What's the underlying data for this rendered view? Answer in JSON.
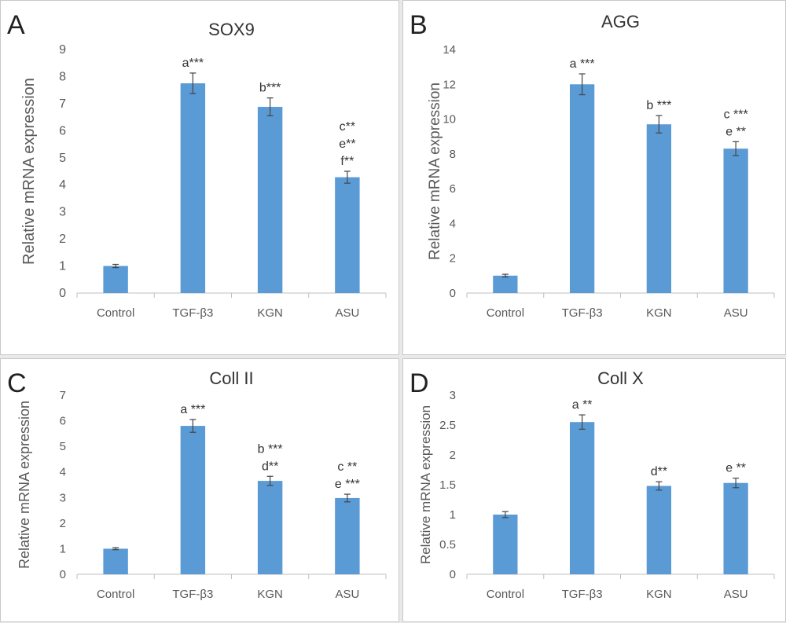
{
  "figure": {
    "bar_color": "#5b9bd5",
    "axis_color": "#bfbfbf",
    "text_color": "#595959",
    "error_color": "#444444"
  },
  "chart_data": [
    {
      "panel": "A",
      "type": "bar",
      "title": "SOX9",
      "ylabel": "Relative mRNA expression",
      "xlabel": "",
      "categories": [
        "Control",
        "TGF-β3",
        "KGN",
        "ASU"
      ],
      "values": [
        1.0,
        7.75,
        6.88,
        4.28
      ],
      "errors": [
        0.06,
        0.38,
        0.33,
        0.22
      ],
      "annotations": [
        [],
        [
          "a***"
        ],
        [
          "b***"
        ],
        [
          "c**",
          "e**",
          "f**"
        ]
      ],
      "ylim": [
        0,
        9
      ],
      "yticks": [
        "0",
        "1",
        "2",
        "3",
        "4",
        "5",
        "6",
        "7",
        "8",
        "9"
      ],
      "grid": false
    },
    {
      "panel": "B",
      "type": "bar",
      "title": "AGG",
      "ylabel": "Relative mRNA expression",
      "xlabel": "",
      "categories": [
        "Control",
        "TGF-β3",
        "KGN",
        "ASU"
      ],
      "values": [
        1.0,
        12.0,
        9.7,
        8.3
      ],
      "errors": [
        0.08,
        0.6,
        0.5,
        0.4
      ],
      "annotations": [
        [],
        [
          "a ***"
        ],
        [
          "b ***"
        ],
        [
          "c ***",
          "e **"
        ]
      ],
      "ylim": [
        0,
        14
      ],
      "yticks": [
        "0",
        "2",
        "4",
        "6",
        "8",
        "10",
        "12",
        "14"
      ],
      "grid": false
    },
    {
      "panel": "C",
      "type": "bar",
      "title": "Coll II",
      "ylabel": "Relative mRNA expression",
      "xlabel": "",
      "categories": [
        "Control",
        "TGF-β3",
        "KGN",
        "ASU"
      ],
      "values": [
        1.0,
        5.8,
        3.65,
        2.98
      ],
      "errors": [
        0.04,
        0.25,
        0.18,
        0.15
      ],
      "annotations": [
        [],
        [
          "a ***"
        ],
        [
          "b ***",
          "d**"
        ],
        [
          "c **",
          "e ***"
        ]
      ],
      "ylim": [
        0,
        7
      ],
      "yticks": [
        "0",
        "1",
        "2",
        "3",
        "4",
        "5",
        "6",
        "7"
      ],
      "grid": false
    },
    {
      "panel": "D",
      "type": "bar",
      "title": "Coll X",
      "ylabel": "Relative mRNA expression",
      "xlabel": "",
      "categories": [
        "Control",
        "TGF-β3",
        "KGN",
        "ASU"
      ],
      "values": [
        1.0,
        2.55,
        1.48,
        1.53
      ],
      "errors": [
        0.05,
        0.12,
        0.07,
        0.08
      ],
      "annotations": [
        [],
        [
          "a **"
        ],
        [
          "d**"
        ],
        [
          "e **"
        ]
      ],
      "ylim": [
        0,
        3
      ],
      "yticks": [
        "0",
        "0.5",
        "1",
        "1.5",
        "2",
        "2.5",
        "3"
      ],
      "grid": false
    }
  ]
}
